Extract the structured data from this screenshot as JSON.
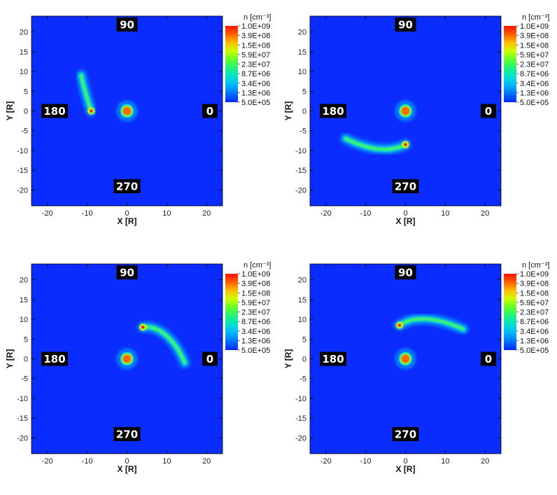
{
  "chart_data": [
    {
      "type": "heatmap",
      "xlabel": "X [R]",
      "ylabel": "Y [R]",
      "xlim": [
        -24,
        24
      ],
      "ylim": [
        -24,
        24
      ],
      "xticks": [
        -20,
        -10,
        0,
        10,
        20
      ],
      "yticks": [
        -20,
        -15,
        -10,
        -5,
        0,
        5,
        10,
        15,
        20
      ],
      "angle_labels": [
        "90",
        "180",
        "0",
        "270"
      ],
      "colorbar": {
        "title": "n [cm⁻³]",
        "labels": [
          "1.0E+09",
          "3.9E+08",
          "1.5E+08",
          "5.9E+07",
          "2.3E+07",
          "8.7E+06",
          "3.4E+06",
          "1.3E+06",
          "5.0E+05"
        ]
      },
      "central_body": {
        "x": 0,
        "y": 0
      },
      "companion": {
        "x": -9,
        "y": 0
      },
      "tail": {
        "points": [
          [
            -9,
            0
          ],
          [
            -10,
            3
          ],
          [
            -11,
            6.5
          ],
          [
            -11.5,
            9
          ]
        ],
        "peak": "5.9E+07",
        "tip_extent": [
          -11.5,
          9.5
        ]
      }
    },
    {
      "type": "heatmap",
      "xlabel": "X [R]",
      "ylabel": "Y [R]",
      "xlim": [
        -24,
        24
      ],
      "ylim": [
        -24,
        24
      ],
      "xticks": [
        -20,
        -10,
        0,
        10,
        20
      ],
      "yticks": [
        -20,
        -15,
        -10,
        -5,
        0,
        5,
        10,
        15,
        20
      ],
      "angle_labels": [
        "90",
        "180",
        "0",
        "270"
      ],
      "colorbar": {
        "title": "n [cm⁻³]",
        "labels": [
          "1.0E+09",
          "3.9E+08",
          "1.5E+08",
          "5.9E+07",
          "2.3E+07",
          "8.7E+06",
          "3.4E+06",
          "1.3E+06",
          "5.0E+05"
        ]
      },
      "central_body": {
        "x": 0,
        "y": 0
      },
      "companion": {
        "x": 0,
        "y": -8.5
      },
      "tail": {
        "points": [
          [
            0,
            -8.5
          ],
          [
            -4,
            -10.5
          ],
          [
            -9,
            -10
          ],
          [
            -15,
            -7
          ]
        ],
        "peak": "5.9E+07",
        "tip_extent": [
          -15,
          -7
        ]
      }
    },
    {
      "type": "heatmap",
      "xlabel": "X [R]",
      "ylabel": "Y [R]",
      "xlim": [
        -24,
        24
      ],
      "ylim": [
        -24,
        24
      ],
      "xticks": [
        -20,
        -10,
        0,
        10,
        20
      ],
      "yticks": [
        -20,
        -15,
        -10,
        -5,
        0,
        5,
        10,
        15,
        20
      ],
      "angle_labels": [
        "90",
        "180",
        "0",
        "270"
      ],
      "colorbar": {
        "title": "n [cm⁻³]",
        "labels": [
          "1.0E+09",
          "3.9E+08",
          "1.5E+08",
          "5.9E+07",
          "2.3E+07",
          "8.7E+06",
          "3.4E+06",
          "1.3E+06",
          "5.0E+05"
        ]
      },
      "central_body": {
        "x": 0,
        "y": 0
      },
      "companion": {
        "x": 4,
        "y": 8
      },
      "tail": {
        "points": [
          [
            4,
            8
          ],
          [
            8,
            8.5
          ],
          [
            12,
            5
          ],
          [
            14.5,
            -1
          ]
        ],
        "peak": "5.9E+07",
        "tip_extent": [
          14.5,
          -1
        ]
      }
    },
    {
      "type": "heatmap",
      "xlabel": "X [R]",
      "ylabel": "Y [R]",
      "xlim": [
        -24,
        24
      ],
      "ylim": [
        -24,
        24
      ],
      "xticks": [
        -20,
        -10,
        0,
        10,
        20
      ],
      "yticks": [
        -20,
        -15,
        -10,
        -5,
        0,
        5,
        10,
        15,
        20
      ],
      "angle_labels": [
        "90",
        "180",
        "0",
        "270"
      ],
      "colorbar": {
        "title": "n [cm⁻³]",
        "labels": [
          "1.0E+09",
          "3.9E+08",
          "1.5E+08",
          "5.9E+07",
          "2.3E+07",
          "8.7E+06",
          "3.4E+06",
          "1.3E+06",
          "5.0E+05"
        ]
      },
      "central_body": {
        "x": 0,
        "y": 0
      },
      "companion": {
        "x": -1.5,
        "y": 8.5
      },
      "tail": {
        "points": [
          [
            -1.5,
            8.5
          ],
          [
            2,
            11
          ],
          [
            8,
            10.5
          ],
          [
            14.5,
            7.5
          ]
        ],
        "peak": "5.9E+07",
        "tip_extent": [
          14.5,
          7.5
        ]
      }
    }
  ],
  "colors": {
    "background": "#0a2cff",
    "colormap": [
      "#0026ff",
      "#0070ff",
      "#00b4ff",
      "#00e0d0",
      "#20f080",
      "#60ff30",
      "#c8ff00",
      "#ffc000",
      "#ff6000",
      "#ff1000"
    ],
    "label_box": "#000000",
    "label_text": "#ffffff"
  }
}
